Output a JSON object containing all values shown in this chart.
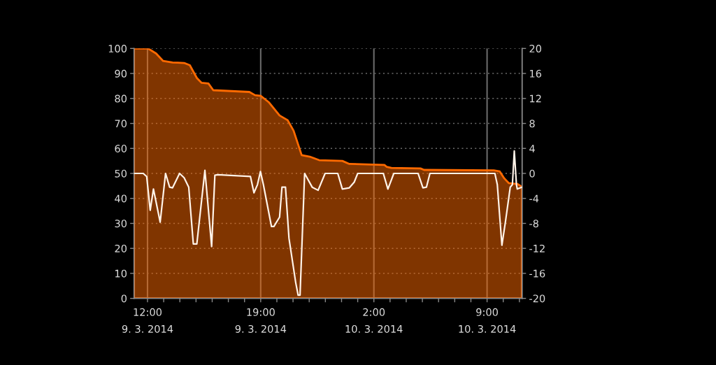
{
  "chart_data": {
    "type": "area",
    "series": [
      {
        "color": "#ff6a00",
        "x": [
          "2014-03-09T11:10",
          "2014-03-09T12:02",
          "2014-03-09T12:32",
          "2014-03-09T12:58",
          "2014-03-09T13:33",
          "2014-03-09T14:16",
          "2014-03-09T14:37",
          "2014-03-09T15:03",
          "2014-03-09T15:20",
          "2014-03-09T15:46",
          "2014-03-09T16:04",
          "2014-03-09T18:18",
          "2014-03-09T18:39",
          "2014-03-09T19:01",
          "2014-03-09T19:31",
          "2014-03-09T20:10",
          "2014-03-09T20:40",
          "2014-03-09T21:02",
          "2014-03-09T21:32",
          "2014-03-09T22:02",
          "2014-03-09T22:37",
          "2014-03-10T00:03",
          "2014-03-10T00:29",
          "2014-03-10T02:39",
          "2014-03-10T02:48",
          "2014-03-10T03:05",
          "2014-03-10T04:53",
          "2014-03-10T05:06",
          "2014-03-10T09:25",
          "2014-03-10T09:47",
          "2014-03-10T10:04",
          "2014-03-10T10:21",
          "2014-03-10T10:52",
          "2014-03-10T11:09"
        ],
        "values": [
          100,
          100,
          98,
          95,
          94.4,
          94.2,
          93.3,
          88.2,
          86.3,
          86,
          83.3,
          82.6,
          81.3,
          81,
          78.4,
          73.2,
          71.3,
          67.1,
          57.3,
          56.7,
          55.3,
          55,
          53.8,
          53.4,
          52.6,
          52.2,
          52,
          51.4,
          51.2,
          50.8,
          48,
          46.1,
          45.8,
          44.7
        ]
      },
      {
        "type": "line",
        "axis": "y2",
        "color": "#fff3e8",
        "x": [
          "2014-03-09T11:10",
          "2014-03-09T11:44",
          "2014-03-09T11:57",
          "2014-03-09T12:10",
          "2014-03-09T12:22",
          "2014-03-09T12:47",
          "2014-03-09T13:07",
          "2014-03-09T13:22",
          "2014-03-09T13:33",
          "2014-03-09T13:59",
          "2014-03-09T14:16",
          "2014-03-09T14:33",
          "2014-03-09T14:50",
          "2014-03-09T15:03",
          "2014-03-09T15:33",
          "2014-03-09T15:58",
          "2014-03-09T16:10",
          "2014-03-09T16:21",
          "2014-03-09T18:22",
          "2014-03-09T18:35",
          "2014-03-09T18:48",
          "2014-03-09T18:59",
          "2014-03-09T19:10",
          "2014-03-09T19:40",
          "2014-03-09T19:49",
          "2014-03-09T20:10",
          "2014-03-09T20:19",
          "2014-03-09T20:32",
          "2014-03-09T20:45",
          "2014-03-09T21:10",
          "2014-03-09T21:19",
          "2014-03-09T21:26",
          "2014-03-09T21:43",
          "2014-03-09T22:11",
          "2014-03-09T22:33",
          "2014-03-09T22:59",
          "2014-03-09T23:46",
          "2014-03-10T00:03",
          "2014-03-10T00:29",
          "2014-03-10T00:47",
          "2014-03-10T01:00",
          "2014-03-10T02:35",
          "2014-03-10T02:52",
          "2014-03-10T03:14",
          "2014-03-10T04:44",
          "2014-03-10T05:02",
          "2014-03-10T05:15",
          "2014-03-10T05:28",
          "2014-03-10T09:29",
          "2014-03-10T09:38",
          "2014-03-10T09:55",
          "2014-03-10T10:08",
          "2014-03-10T10:26",
          "2014-03-10T10:34",
          "2014-03-10T10:41",
          "2014-03-10T10:49",
          "2014-03-10T10:52",
          "2014-03-10T11:09"
        ],
        "values": [
          0,
          0,
          -0.5,
          -5.9,
          -2.5,
          -7.8,
          0,
          -2.2,
          -2.3,
          0,
          -0.7,
          -2.2,
          -11.3,
          -11.3,
          0.5,
          -11.7,
          -0.3,
          -0.2,
          -0.5,
          -3.1,
          -1.8,
          0.3,
          -1.8,
          -8.5,
          -8.5,
          -7,
          -2.2,
          -2.2,
          -10.4,
          -17.5,
          -19.5,
          -19.5,
          0,
          -2.2,
          -2.7,
          0,
          0,
          -2.5,
          -2.3,
          -1.4,
          0,
          0,
          -2.5,
          0,
          0,
          -2.3,
          -2.2,
          0,
          0,
          -1.8,
          -11.5,
          -7.8,
          -2.2,
          -1.8,
          3.6,
          -1.8,
          -2.5,
          -2.2
        ]
      }
    ],
    "xlim": [
      "2014-03-09T11:10",
      "2014-03-10T11:10"
    ],
    "xticks": [
      {
        "value": "2014-03-09T12:00",
        "label": "12:00\n9. 3. 2014"
      },
      {
        "value": "2014-03-09T13:00",
        "label": null
      },
      {
        "value": "2014-03-09T14:00",
        "label": null
      },
      {
        "value": "2014-03-09T15:00",
        "label": null
      },
      {
        "value": "2014-03-09T16:00",
        "label": null
      },
      {
        "value": "2014-03-09T17:00",
        "label": null
      },
      {
        "value": "2014-03-09T18:00",
        "label": null
      },
      {
        "value": "2014-03-09T19:00",
        "label": "19:00\n9. 3. 2014"
      },
      {
        "value": "2014-03-09T20:00",
        "label": null
      },
      {
        "value": "2014-03-09T21:00",
        "label": null
      },
      {
        "value": "2014-03-09T22:00",
        "label": null
      },
      {
        "value": "2014-03-09T23:00",
        "label": null
      },
      {
        "value": "2014-03-10T00:00",
        "label": null
      },
      {
        "value": "2014-03-10T01:00",
        "label": null
      },
      {
        "value": "2014-03-10T02:00",
        "label": "2:00\n10. 3. 2014"
      },
      {
        "value": "2014-03-10T03:00",
        "label": null
      },
      {
        "value": "2014-03-10T04:00",
        "label": null
      },
      {
        "value": "2014-03-10T05:00",
        "label": null
      },
      {
        "value": "2014-03-10T06:00",
        "label": null
      },
      {
        "value": "2014-03-10T07:00",
        "label": null
      },
      {
        "value": "2014-03-10T08:00",
        "label": null
      },
      {
        "value": "2014-03-10T09:00",
        "label": "9:00\n10. 3. 2014"
      },
      {
        "value": "2014-03-10T10:00",
        "label": null
      },
      {
        "value": "2014-03-10T11:00",
        "label": null
      }
    ],
    "ylim": [
      0,
      100
    ],
    "yticks": [
      0,
      10,
      20,
      30,
      40,
      50,
      60,
      70,
      80,
      90,
      100
    ],
    "y2lim": [
      -20,
      20
    ],
    "y2ticks": [
      -20,
      -16,
      -12,
      -8,
      -4,
      0,
      4,
      8,
      12,
      16,
      20
    ],
    "grid": true
  }
}
